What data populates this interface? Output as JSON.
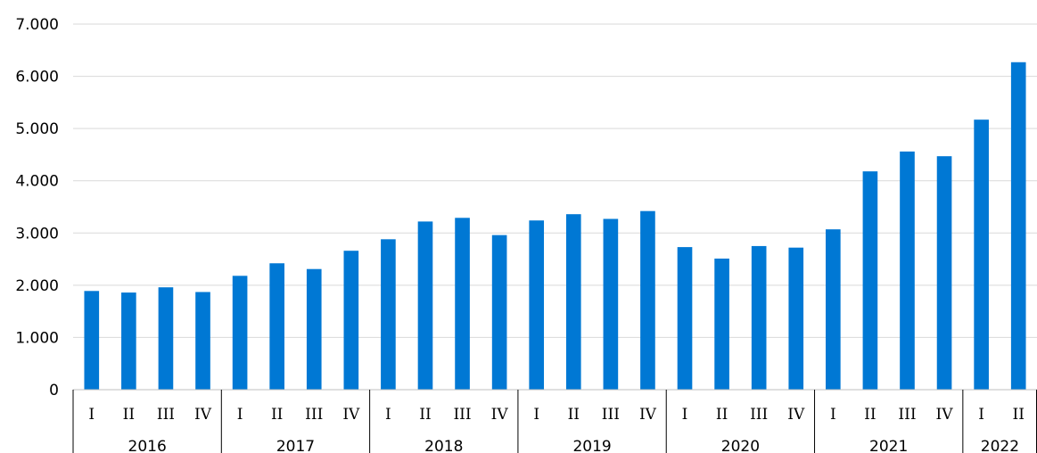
{
  "chart_data": {
    "type": "bar",
    "title": "",
    "xlabel": "",
    "ylabel": "",
    "ylim": [
      0,
      7000
    ],
    "yticks": [
      "0",
      "1.000",
      "2.000",
      "3.000",
      "4.000",
      "5.000",
      "6.000",
      "7.000"
    ],
    "grid": true,
    "legend": "none",
    "color": "#0078D4",
    "groups": [
      {
        "label": "2016",
        "quarters": [
          "I",
          "II",
          "III",
          "IV"
        ],
        "values": [
          1890,
          1860,
          1960,
          1870
        ]
      },
      {
        "label": "2017",
        "quarters": [
          "I",
          "II",
          "III",
          "IV"
        ],
        "values": [
          2180,
          2420,
          2310,
          2660
        ]
      },
      {
        "label": "2018",
        "quarters": [
          "I",
          "II",
          "III",
          "IV"
        ],
        "values": [
          2880,
          3220,
          3290,
          2960
        ]
      },
      {
        "label": "2019",
        "quarters": [
          "I",
          "II",
          "III",
          "IV"
        ],
        "values": [
          3240,
          3360,
          3270,
          3420
        ]
      },
      {
        "label": "2020",
        "quarters": [
          "I",
          "II",
          "III",
          "IV"
        ],
        "values": [
          2730,
          2510,
          2750,
          2720
        ]
      },
      {
        "label": "2021",
        "quarters": [
          "I",
          "II",
          "III",
          "IV"
        ],
        "values": [
          3070,
          4180,
          4560,
          4470
        ]
      },
      {
        "label": "2022",
        "quarters": [
          "I",
          "II"
        ],
        "values": [
          5170,
          6270
        ]
      }
    ]
  }
}
